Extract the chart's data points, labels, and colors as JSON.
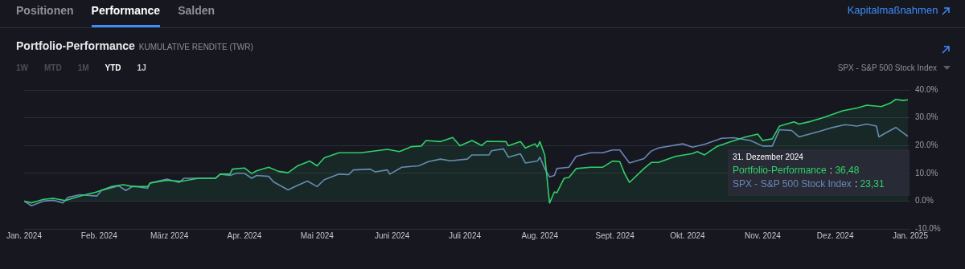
{
  "chart_data": {
    "type": "line",
    "title": "Portfolio-Performance",
    "subtitle": "KUMULATIVE RENDITE (TWR)",
    "xlim": [
      "2024-01-01",
      "2025-01-01"
    ],
    "xticks": [
      {
        "value": "2024-01-01",
        "label": "Jan. 2024"
      },
      {
        "value": "2024-02-01",
        "label": "Feb. 2024"
      },
      {
        "value": "2024-03-01",
        "label": "März 2024"
      },
      {
        "value": "2024-04-01",
        "label": "Apr. 2024"
      },
      {
        "value": "2024-05-01",
        "label": "Mai 2024"
      },
      {
        "value": "2024-06-01",
        "label": "Juni 2024"
      },
      {
        "value": "2024-07-01",
        "label": "Juli 2024"
      },
      {
        "value": "2024-08-01",
        "label": "Aug. 2024"
      },
      {
        "value": "2024-09-01",
        "label": "Sept. 2024"
      },
      {
        "value": "2024-10-01",
        "label": "Okt. 2024"
      },
      {
        "value": "2024-11-01",
        "label": "Nov. 2024"
      },
      {
        "value": "2024-12-01",
        "label": "Dez. 2024"
      },
      {
        "value": "2025-01-01",
        "label": "Jan. 2025"
      }
    ],
    "ylim": [
      -10,
      40
    ],
    "yticks": [
      {
        "value": -10,
        "label": "-10.0%"
      },
      {
        "value": 0,
        "label": "0.0%"
      },
      {
        "value": 10,
        "label": "10.0%"
      },
      {
        "value": 20,
        "label": "20.0%"
      },
      {
        "value": 30,
        "label": "30.0%"
      },
      {
        "value": 40,
        "label": "40.0%"
      }
    ],
    "grid": "y",
    "legend": false,
    "marker": "none",
    "series": [
      {
        "name": "Portfolio-Performance",
        "type": "area",
        "color": "#2fd16a",
        "x": [
          "2024-01-01",
          "2024-01-04",
          "2024-01-09",
          "2024-01-13",
          "2024-01-18",
          "2024-01-24",
          "2024-01-31",
          "2024-02-06",
          "2024-02-11",
          "2024-02-15",
          "2024-02-21",
          "2024-02-22",
          "2024-02-29",
          "2024-03-06",
          "2024-03-13",
          "2024-03-20",
          "2024-03-22",
          "2024-03-26",
          "2024-03-27",
          "2024-04-01",
          "2024-04-04",
          "2024-04-06",
          "2024-04-11",
          "2024-04-15",
          "2024-04-19",
          "2024-04-23",
          "2024-04-28",
          "2024-05-01",
          "2024-05-04",
          "2024-05-10",
          "2024-05-19",
          "2024-05-30",
          "2024-06-04",
          "2024-06-09",
          "2024-06-13",
          "2024-06-15",
          "2024-06-21",
          "2024-06-26",
          "2024-06-29",
          "2024-07-04",
          "2024-07-08",
          "2024-07-10",
          "2024-07-18",
          "2024-07-19",
          "2024-07-24",
          "2024-07-26",
          "2024-07-30",
          "2024-07-31",
          "2024-08-01",
          "2024-08-03",
          "2024-08-05",
          "2024-08-07",
          "2024-08-08",
          "2024-08-11",
          "2024-08-13",
          "2024-08-16",
          "2024-08-22",
          "2024-08-27",
          "2024-08-31",
          "2024-09-03",
          "2024-09-05",
          "2024-09-07",
          "2024-09-13",
          "2024-09-16",
          "2024-09-19",
          "2024-09-26",
          "2024-10-03",
          "2024-10-05",
          "2024-10-08",
          "2024-10-13",
          "2024-10-19",
          "2024-10-25",
          "2024-10-30",
          "2024-11-01",
          "2024-11-05",
          "2024-11-08",
          "2024-11-14",
          "2024-11-16",
          "2024-11-21",
          "2024-11-27",
          "2024-12-04",
          "2024-12-10",
          "2024-12-14",
          "2024-12-20",
          "2024-12-24",
          "2024-12-26",
          "2024-12-29",
          "2024-12-31"
        ],
        "values": [
          0,
          -0.7,
          0.6,
          1.0,
          0.2,
          1.8,
          3.3,
          5.2,
          5.9,
          5.2,
          5.2,
          6.5,
          7.5,
          7.1,
          8.2,
          8.2,
          9.7,
          9.7,
          11.5,
          11.9,
          9.9,
          10.9,
          12.2,
          10.7,
          10.2,
          12.7,
          14.4,
          12.7,
          15.6,
          17.4,
          17.4,
          18.6,
          17.8,
          19.6,
          19.8,
          21.8,
          21.4,
          22.9,
          19.9,
          21.8,
          20.0,
          21.5,
          21.4,
          19.9,
          21.4,
          19.1,
          20.6,
          19.5,
          21.4,
          16.6,
          -0.7,
          3.3,
          3.0,
          8.2,
          8.5,
          11.7,
          12.2,
          12.2,
          14.4,
          14.2,
          9.9,
          6.7,
          11.7,
          13.9,
          13.9,
          16.1,
          17.1,
          17.8,
          16.6,
          19.6,
          21.4,
          23.1,
          24.1,
          21.8,
          22.4,
          27.0,
          28.5,
          27.7,
          28.7,
          30.3,
          32.5,
          33.5,
          34.5,
          34.0,
          35.4,
          36.6,
          36.2,
          36.48
        ]
      },
      {
        "name": "SPX - S&P 500 Stock Index",
        "type": "line",
        "color": "#6a86b8",
        "x": [
          "2024-01-01",
          "2024-01-04",
          "2024-01-09",
          "2024-01-13",
          "2024-01-17",
          "2024-01-19",
          "2024-01-24",
          "2024-01-31",
          "2024-02-02",
          "2024-02-09",
          "2024-02-12",
          "2024-02-15",
          "2024-02-21",
          "2024-02-22",
          "2024-02-29",
          "2024-03-05",
          "2024-03-07",
          "2024-03-13",
          "2024-03-20",
          "2024-03-22",
          "2024-03-26",
          "2024-03-29",
          "2024-04-01",
          "2024-04-04",
          "2024-04-06",
          "2024-04-11",
          "2024-04-13",
          "2024-04-19",
          "2024-04-23",
          "2024-04-27",
          "2024-05-01",
          "2024-05-04",
          "2024-05-10",
          "2024-05-14",
          "2024-05-16",
          "2024-05-23",
          "2024-05-25",
          "2024-05-30",
          "2024-05-31",
          "2024-06-05",
          "2024-06-12",
          "2024-06-16",
          "2024-06-21",
          "2024-06-25",
          "2024-07-02",
          "2024-07-04",
          "2024-07-11",
          "2024-07-12",
          "2024-07-17",
          "2024-07-19",
          "2024-07-24",
          "2024-07-26",
          "2024-07-31",
          "2024-08-01",
          "2024-08-03",
          "2024-08-05",
          "2024-08-07",
          "2024-08-08",
          "2024-08-13",
          "2024-08-16",
          "2024-08-22",
          "2024-08-27",
          "2024-08-31",
          "2024-09-03",
          "2024-09-07",
          "2024-09-13",
          "2024-09-16",
          "2024-09-19",
          "2024-09-29",
          "2024-10-03",
          "2024-10-08",
          "2024-10-15",
          "2024-10-20",
          "2024-10-27",
          "2024-11-01",
          "2024-11-05",
          "2024-11-08",
          "2024-11-13",
          "2024-11-16",
          "2024-11-24",
          "2024-11-29",
          "2024-12-05",
          "2024-12-10",
          "2024-12-14",
          "2024-12-18",
          "2024-12-19",
          "2024-12-22",
          "2024-12-26",
          "2024-12-29",
          "2024-12-31"
        ],
        "values": [
          0,
          -1.7,
          0.0,
          0.3,
          -0.7,
          1.3,
          2.3,
          1.8,
          3.8,
          5.5,
          3.8,
          5.4,
          4.6,
          6.5,
          7.9,
          6.7,
          8.2,
          8.2,
          8.2,
          9.7,
          9.2,
          10.1,
          10.0,
          8.2,
          9.2,
          8.9,
          6.9,
          4.0,
          5.7,
          7.2,
          5.2,
          7.7,
          9.7,
          9.5,
          11.2,
          11.5,
          10.5,
          11.2,
          9.7,
          12.2,
          12.7,
          14.2,
          15.1,
          14.5,
          15.1,
          16.6,
          16.6,
          18.1,
          18.8,
          15.8,
          17.0,
          13.7,
          14.4,
          15.8,
          11.7,
          8.7,
          9.2,
          11.7,
          12.2,
          16.1,
          17.4,
          17.4,
          18.4,
          18.4,
          13.7,
          15.3,
          18.0,
          19.1,
          20.6,
          19.4,
          20.4,
          22.6,
          22.8,
          21.8,
          19.8,
          19.8,
          25.7,
          25.4,
          23.1,
          25.0,
          26.3,
          27.5,
          27.0,
          27.7,
          27.0,
          23.1,
          24.6,
          26.5,
          24.6,
          23.31
        ]
      }
    ],
    "annotations": [
      "Positionen",
      "Performance",
      "Salden",
      "Kapitalmaßnahmen",
      "1W",
      "MTD",
      "1M",
      "YTD",
      "1J",
      "31. Dezember 2024",
      ": 36,48",
      ": 23,31"
    ]
  }
}
